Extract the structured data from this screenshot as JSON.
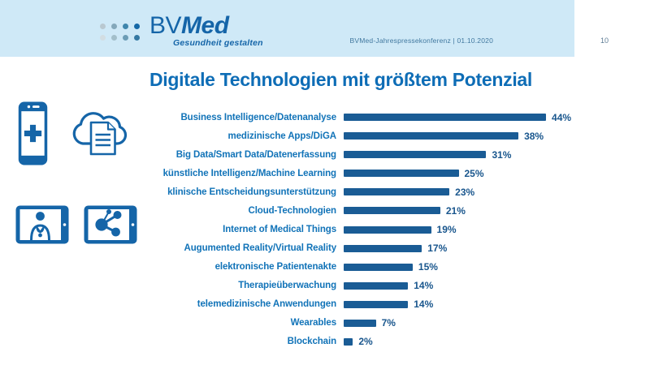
{
  "header": {
    "logo": {
      "bv": "BV",
      "med": "Med",
      "tagline": "Gesundheit gestalten"
    },
    "meta": "BVMed-Jahrespressekonferenz | 01.10.2020",
    "page_number": "10"
  },
  "title": "Digitale Technologien mit größtem Potenzial",
  "icons": [
    {
      "name": "medical-app-phone-icon"
    },
    {
      "name": "cloud-document-icon"
    },
    {
      "name": "telemedicine-doctor-tablet-icon"
    },
    {
      "name": "network-share-tablet-icon"
    }
  ],
  "colors": {
    "header_background": "#cfe9f7",
    "brand_blue": "#1565a8",
    "title_blue": "#0e6db6",
    "label_blue": "#1173b8",
    "bar_blue": "#1a5c95",
    "value_blue": "#19568d",
    "meta_blue": "#41789f"
  },
  "chart_data": {
    "type": "bar",
    "orientation": "horizontal",
    "title": "Digitale Technologien mit größtem Potenzial",
    "unit": "%",
    "xlim": [
      0,
      50
    ],
    "grid": false,
    "legend": false,
    "categories": [
      "Business Intelligence/Datenanalyse",
      "medizinische Apps/DiGA",
      "Big Data/Smart Data/Datenerfassung",
      "künstliche Intelligenz/Machine Learning",
      "klinische Entscheidungsunterstützung",
      "Cloud-Technologien",
      "Internet of Medical Things",
      "Augumented Reality/Virtual Reality",
      "elektronische Patientenakte",
      "Therapieüberwachung",
      "telemedizinische Anwendungen",
      "Wearables",
      "Blockchain"
    ],
    "values": [
      44,
      38,
      31,
      25,
      23,
      21,
      19,
      17,
      15,
      14,
      14,
      7,
      2
    ],
    "value_labels": [
      "44%",
      "38%",
      "31%",
      "25%",
      "23%",
      "21%",
      "19%",
      "17%",
      "15%",
      "14%",
      "14%",
      "7%",
      "2%"
    ]
  }
}
